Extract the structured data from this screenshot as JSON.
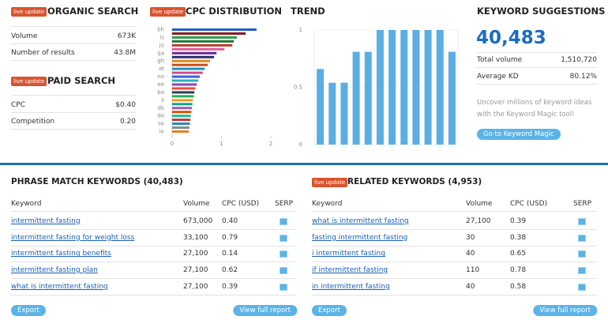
{
  "organic_search": {
    "badge": "live update",
    "title": "ORGANIC SEARCH",
    "rows": [
      [
        "Volume",
        "673K"
      ],
      [
        "Number of results",
        "43.8M"
      ]
    ]
  },
  "paid_search": {
    "badge": "live update",
    "title": "PAID SEARCH",
    "rows": [
      [
        "CPC",
        "$0.40"
      ],
      [
        "Competition",
        "0.20"
      ]
    ]
  },
  "chart_data": [
    {
      "type": "hbar",
      "badge": "live update",
      "title": "CPC DISTRIBUTION",
      "categories": [
        "bh",
        null,
        "is",
        null,
        "jo",
        null,
        "qa",
        null,
        "gh",
        null,
        "at",
        null,
        "no",
        null,
        "ee",
        null,
        "ba",
        null,
        "il",
        null,
        "dk",
        null,
        "de",
        null,
        "se",
        null,
        "ie"
      ],
      "values": [
        1.71,
        1.49,
        1.31,
        1.25,
        1.22,
        1.06,
        0.9,
        0.85,
        0.77,
        0.72,
        0.66,
        0.62,
        0.56,
        0.53,
        0.5,
        0.47,
        0.45,
        0.44,
        0.42,
        0.41,
        0.4,
        0.39,
        0.38,
        0.37,
        0.36,
        0.35,
        0.34
      ],
      "colors": [
        "#1f5fbf",
        "#8b1a1a",
        "#2e9e4a",
        "#1f7a3a",
        "#c0392b",
        "#e05a9a",
        "#6a2c91",
        "#2a2a6a",
        "#e08a1a",
        "#c94d1a",
        "#1a8fbf",
        "#d14a8a",
        "#3b5fd9",
        "#2ab0c0",
        "#8e44ad",
        "#e74c3c",
        "#2c3e50",
        "#27ae60",
        "#f39c12",
        "#16a085",
        "#9b59b6",
        "#d35400",
        "#1abc9c",
        "#c0392b",
        "#2980b9",
        "#7f8c8d",
        "#e67e22"
      ],
      "xlim": [
        0,
        2
      ],
      "xticks": [
        0,
        1,
        2
      ]
    },
    {
      "type": "bar",
      "title": "TREND",
      "values": [
        0.66,
        0.54,
        0.54,
        0.81,
        0.81,
        1,
        1,
        1,
        1,
        1,
        1,
        0.81
      ],
      "color": "#5aaee3",
      "ylim": [
        0,
        1
      ],
      "yticks": [
        1,
        0.5,
        0
      ],
      "grid": true
    }
  ],
  "keyword_suggestions": {
    "title": "KEYWORD SUGGESTIONS",
    "count": "40,483",
    "rows": [
      [
        "Total volume",
        "1,510,720"
      ],
      [
        "Average KD",
        "80.12%"
      ]
    ],
    "description": "Uncover millions of keyword ideas with the Keyword Magic tool!",
    "button": "Go to Keyword Magic"
  },
  "phrase_match": {
    "title": "PHRASE MATCH KEYWORDS (40,483)",
    "columns": [
      "Keyword",
      "Volume",
      "CPC (USD)",
      "SERP"
    ],
    "rows": [
      [
        "intermittent fasting",
        "673,000",
        "0.40"
      ],
      [
        "intermittent fasting for weight loss",
        "33,100",
        "0.79"
      ],
      [
        "intermittent fasting benefits",
        "27,100",
        "0.14"
      ],
      [
        "intermittent fasting plan",
        "27,100",
        "0.62"
      ],
      [
        "what is intermittent fasting",
        "27,100",
        "0.39"
      ]
    ],
    "export": "Export",
    "full_report": "View full report"
  },
  "related": {
    "badge": "live update",
    "title": "RELATED KEYWORDS (4,953)",
    "columns": [
      "Keyword",
      "Volume",
      "CPC (USD)",
      "SERP"
    ],
    "rows": [
      [
        "what is intermittent fasting",
        "27,100",
        "0.39"
      ],
      [
        "fasting intermittent fasting",
        "30",
        "0.38"
      ],
      [
        "i intermittent fasting",
        "40",
        "0.65"
      ],
      [
        "if intermittent fasting",
        "110",
        "0.78"
      ],
      [
        "in intermittent fasting",
        "40",
        "0.58"
      ]
    ],
    "export": "Export",
    "full_report": "View full report"
  }
}
